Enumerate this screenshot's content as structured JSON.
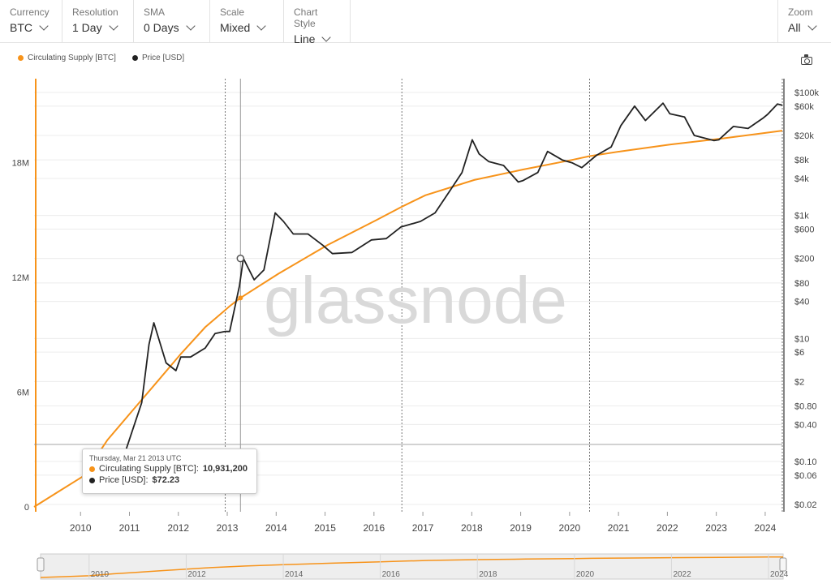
{
  "controls": {
    "currency": {
      "label": "Currency",
      "value": "BTC"
    },
    "resolution": {
      "label": "Resolution",
      "value": "1 Day"
    },
    "sma": {
      "label": "SMA",
      "value": "0 Days"
    },
    "scale": {
      "label": "Scale",
      "value": "Mixed"
    },
    "chart_style": {
      "label": "Chart Style",
      "value": "Line"
    },
    "zoom": {
      "label": "Zoom",
      "value": "All"
    }
  },
  "colors": {
    "supply": "#f7931a",
    "price": "#222222",
    "grid": "#ececec"
  },
  "icons": {
    "snapshot": "camera-icon"
  },
  "watermark": "glassnode",
  "tooltip": {
    "date": "Thursday, Mar 21 2013 UTC",
    "supply_label": "Circulating Supply [BTC]:",
    "supply_value": "10,931,200",
    "price_label": "Price [USD]:",
    "price_value": "$72.23"
  },
  "chart_data": {
    "type": "line",
    "legend": [
      "Circulating Supply [BTC]",
      "Price [USD]"
    ],
    "x_ticks": [
      "2010",
      "2011",
      "2012",
      "2013",
      "2014",
      "2015",
      "2016",
      "2017",
      "2018",
      "2019",
      "2020",
      "2021",
      "2022",
      "2023",
      "2024"
    ],
    "y_left_ticks": [
      "0",
      "6M",
      "12M",
      "18M"
    ],
    "y_left_range": [
      0,
      21000000
    ],
    "y_right_ticks": [
      "$100k",
      "$60k",
      "$20k",
      "$8k",
      "$4k",
      "$1k",
      "$600",
      "$200",
      "$80",
      "$40",
      "$10",
      "$6",
      "$2",
      "$0.80",
      "$0.40",
      "$0.10",
      "$0.06",
      "$0.02"
    ],
    "y_right_range": [
      0.02,
      100000
    ],
    "y_right_scale": "log",
    "halving_dates": [
      2012.91,
      2016.52,
      2020.36,
      2024.3
    ],
    "cursor_date": 2013.22,
    "series": [
      {
        "name": "Circulating Supply [BTC]",
        "axis": "left",
        "x": [
          2009.0,
          2009.5,
          2010.0,
          2010.5,
          2011.0,
          2011.5,
          2012.0,
          2012.5,
          2012.91,
          2013.0,
          2013.22,
          2014.0,
          2015.0,
          2016.0,
          2016.52,
          2017.0,
          2018.0,
          2019.0,
          2020.0,
          2020.36,
          2021.0,
          2022.0,
          2023.0,
          2024.0,
          2024.3
        ],
        "values": [
          0,
          800000,
          1600000,
          3500000,
          5000000,
          6500000,
          8000000,
          9400000,
          10300000,
          10500000,
          10931200,
          12200000,
          13700000,
          15000000,
          15700000,
          16300000,
          17100000,
          17650000,
          18150000,
          18350000,
          18600000,
          18950000,
          19250000,
          19580000,
          19680000
        ]
      },
      {
        "name": "Price [USD]",
        "axis": "right",
        "x": [
          2010.6,
          2010.8,
          2011.0,
          2011.2,
          2011.35,
          2011.45,
          2011.7,
          2011.9,
          2012.0,
          2012.2,
          2012.5,
          2012.7,
          2012.9,
          2013.0,
          2013.2,
          2013.28,
          2013.5,
          2013.7,
          2013.93,
          2014.1,
          2014.3,
          2014.6,
          2014.9,
          2015.1,
          2015.5,
          2015.9,
          2016.2,
          2016.5,
          2016.9,
          2017.2,
          2017.5,
          2017.75,
          2017.96,
          2018.1,
          2018.3,
          2018.6,
          2018.9,
          2019.0,
          2019.3,
          2019.5,
          2019.8,
          2020.0,
          2020.2,
          2020.5,
          2020.8,
          2021.0,
          2021.28,
          2021.5,
          2021.86,
          2022.0,
          2022.3,
          2022.5,
          2022.9,
          2023.0,
          2023.3,
          2023.6,
          2023.9,
          2024.0,
          2024.2,
          2024.3
        ],
        "values": [
          0.06,
          0.1,
          0.3,
          0.9,
          8,
          18,
          4,
          3,
          5,
          5,
          7,
          12,
          13,
          13,
          72,
          200,
          90,
          130,
          1100,
          800,
          500,
          500,
          330,
          240,
          250,
          400,
          420,
          650,
          800,
          1100,
          2500,
          5000,
          17000,
          10000,
          7500,
          6500,
          3500,
          3700,
          5000,
          11000,
          8000,
          7200,
          6000,
          9500,
          13000,
          29000,
          60000,
          35000,
          67000,
          45000,
          40000,
          20000,
          16500,
          17000,
          28000,
          26000,
          38000,
          44000,
          65000,
          62000
        ]
      }
    ]
  }
}
